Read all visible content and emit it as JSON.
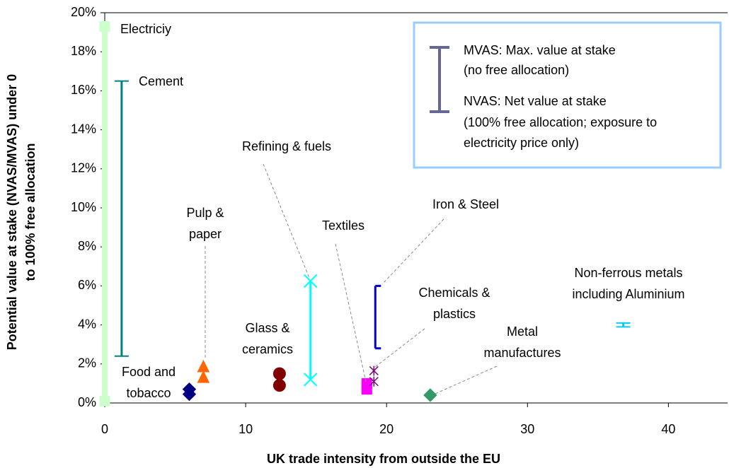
{
  "chart_data": {
    "type": "range-scatter",
    "y_title": [
      "Potential value at stake (NVAS/MVAS) under 0",
      "to 100% free allocation"
    ],
    "x_title": "UK trade intensity from outside the EU",
    "xlim": [
      0,
      44.2
    ],
    "xticks": [
      0,
      10,
      20,
      30,
      40
    ],
    "ylim": [
      0,
      20
    ],
    "yticks": [
      {
        "value": 0,
        "label": "0%"
      },
      {
        "value": 2,
        "label": "2%"
      },
      {
        "value": 4,
        "label": "4%"
      },
      {
        "value": 6,
        "label": "6%"
      },
      {
        "value": 8,
        "label": "8%"
      },
      {
        "value": 10,
        "label": "10%"
      },
      {
        "value": 12,
        "label": "12%"
      },
      {
        "value": 14,
        "label": "14%"
      },
      {
        "value": 16,
        "label": "16%"
      },
      {
        "value": 18,
        "label": "18%"
      },
      {
        "value": 20,
        "label": "20%"
      }
    ],
    "legend": [
      "MVAS: Max. value at stake",
      "(no free allocation)",
      "NVAS: Net value at stake",
      "(100% free allocation; exposure to",
      "electricity price only)"
    ],
    "series": [
      {
        "name": [
          "Electriciy"
        ],
        "color": "#ccffcc",
        "marker": "square",
        "connector": "thick",
        "x": 0,
        "values": [
          0.1,
          19.3
        ]
      },
      {
        "name": [
          "Cement"
        ],
        "color": "#008080",
        "marker": "dash",
        "connector": "line",
        "x": 1.2,
        "values": [
          2.4,
          16.5
        ]
      },
      {
        "name": [
          "Food and",
          "tobacco"
        ],
        "color": "#000080",
        "marker": "diamond",
        "connector": "none",
        "x": 6,
        "values": [
          0.45,
          0.7
        ]
      },
      {
        "name": [
          "Pulp &",
          "paper"
        ],
        "color": "#ff6600",
        "marker": "triangle",
        "connector": "none",
        "x": 7,
        "values": [
          1.3,
          1.85
        ]
      },
      {
        "name": [
          "Glass &",
          "ceramics"
        ],
        "color": "#800000",
        "marker": "circle",
        "connector": "none",
        "x": 12.4,
        "values": [
          0.9,
          1.5
        ]
      },
      {
        "name": [
          "Refining & fuels"
        ],
        "color": "#00ffff",
        "marker": "x",
        "connector": "line",
        "x": 14.6,
        "values": [
          1.2,
          6.25
        ]
      },
      {
        "name": [
          "Textiles"
        ],
        "color": "#ff00ff",
        "marker": "square",
        "connector": "line",
        "x": 18.6,
        "values": [
          0.7,
          1.0
        ]
      },
      {
        "name": [
          "Chemicals &",
          "plastics"
        ],
        "color": "#800080",
        "marker": "star",
        "connector": "none",
        "x": 19.1,
        "values": [
          1.1,
          1.65
        ]
      },
      {
        "name": [
          "Iron & Steel"
        ],
        "color": "#0000cc",
        "marker": "bracket",
        "connector": "bracket",
        "x": 19.2,
        "values": [
          2.8,
          6.0
        ]
      },
      {
        "name": [
          "Metal",
          "manufactures"
        ],
        "color": "#339966",
        "marker": "diamond",
        "connector": "none",
        "x": 23.1,
        "values": [
          0.4
        ]
      },
      {
        "name": [
          "Non-ferrous metals",
          "including Aluminium"
        ],
        "color": "#00ccff",
        "marker": "dash",
        "connector": "line",
        "x": 36.8,
        "values": [
          3.9,
          4.1
        ]
      }
    ]
  }
}
